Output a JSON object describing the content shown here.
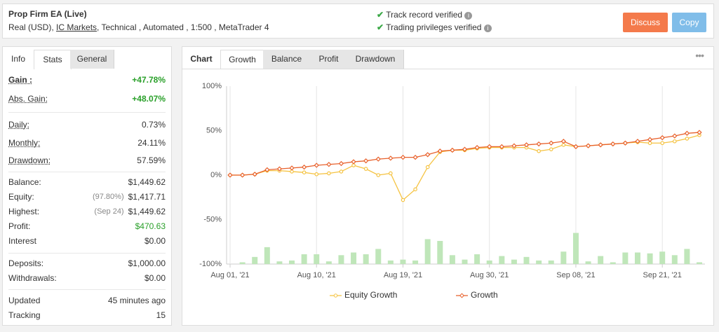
{
  "header": {
    "title": "Prop Firm EA (Live)",
    "info": [
      "Real (USD),",
      "IC Markets",
      ", Technical , Automated , 1:500 , MetaTrader 4"
    ],
    "verified": [
      "Track record verified",
      "Trading privileges verified"
    ],
    "buttons": [
      "Discuss",
      "Copy"
    ]
  },
  "stats_panel": {
    "tabs": [
      "Info",
      "Stats",
      "General"
    ],
    "active_tab": 1,
    "groups": [
      [
        {
          "label": "Gain :",
          "value": "+47.78%",
          "green": true,
          "bold": true
        },
        {
          "label": "Abs. Gain:",
          "value": "+48.07%",
          "green": true
        }
      ],
      [
        {
          "label": "Daily:",
          "value": "0.73%"
        },
        {
          "label": "Monthly:",
          "value": "24.11%"
        },
        {
          "label": "Drawdown:",
          "value": "57.59%"
        }
      ],
      [
        {
          "label": "Balance:",
          "value": "$1,449.62"
        },
        {
          "label": "Equity:",
          "note": "(97.80%)",
          "value": "$1,417.71"
        },
        {
          "label": "Highest:",
          "note": "(Sep 24)",
          "value": "$1,449.62"
        },
        {
          "label": "Profit:",
          "value": "$470.63",
          "green": true
        },
        {
          "label": "Interest",
          "value": "$0.00"
        }
      ],
      [
        {
          "label": "Deposits:",
          "value": "$1,000.00"
        },
        {
          "label": "Withdrawals:",
          "value": "$0.00"
        }
      ],
      [
        {
          "label": "Updated",
          "value": "45 minutes ago"
        },
        {
          "label": "Tracking",
          "value": "15"
        }
      ]
    ]
  },
  "chart_panel": {
    "tabs": [
      "Chart",
      "Growth",
      "Balance",
      "Profit",
      "Drawdown"
    ],
    "active_tab": 1
  },
  "chart_data": {
    "type": "line",
    "categories": [
      "Aug 01, '21",
      null,
      null,
      null,
      null,
      null,
      null,
      "Aug 10, '21",
      null,
      null,
      null,
      null,
      null,
      null,
      "Aug 19, '21",
      null,
      null,
      null,
      null,
      null,
      null,
      "Aug 30, '21",
      null,
      null,
      null,
      null,
      null,
      null,
      "Sep 08, '21",
      null,
      null,
      null,
      null,
      null,
      null,
      "Sep 21, '21",
      null,
      null,
      null
    ],
    "ylim": [
      -100,
      100
    ],
    "yticks": [
      {
        "value": 100,
        "label": "100%"
      },
      {
        "value": 50,
        "label": "50%"
      },
      {
        "value": 0,
        "label": "0%"
      },
      {
        "value": -50,
        "label": "-50%"
      },
      {
        "value": -100,
        "label": "-100%"
      }
    ],
    "series": [
      {
        "name": "Equity Growth",
        "color": "#f5c342",
        "marker": "circle",
        "values": [
          0,
          0,
          1,
          5,
          5,
          4,
          3,
          1,
          2,
          4,
          11,
          7,
          0,
          2,
          -28,
          -16,
          9,
          26,
          28,
          28,
          30,
          31,
          31,
          31,
          31,
          27,
          29,
          34,
          32,
          33,
          34,
          35,
          36,
          37,
          36,
          36,
          38,
          41,
          45
        ]
      },
      {
        "name": "Growth",
        "color": "#e8612c",
        "marker": "diamond",
        "values": [
          0,
          0,
          1,
          6,
          7,
          8,
          9,
          11,
          12,
          13,
          15,
          16,
          18,
          19,
          20,
          20,
          23,
          27,
          28,
          29,
          31,
          32,
          32,
          33,
          34,
          35,
          36,
          38,
          32,
          33,
          34,
          35,
          36,
          38,
          40,
          42,
          44,
          47,
          48
        ]
      },
      {
        "color": "#bfe6b9",
        "style": "bar",
        "values": [
          null,
          -98,
          -92,
          -81,
          -97,
          -96,
          -89,
          -89,
          -97,
          -90,
          -87,
          -89,
          -83,
          -96,
          -95,
          -96,
          -72,
          -74,
          -90,
          -95,
          -89,
          -96,
          -91,
          -95,
          -92,
          -96,
          -96,
          -86,
          -65,
          -97,
          -91,
          -98,
          -87,
          -87,
          -88,
          -86,
          -90,
          -83,
          -98
        ]
      }
    ],
    "legend": "bottom",
    "grid": "x"
  }
}
